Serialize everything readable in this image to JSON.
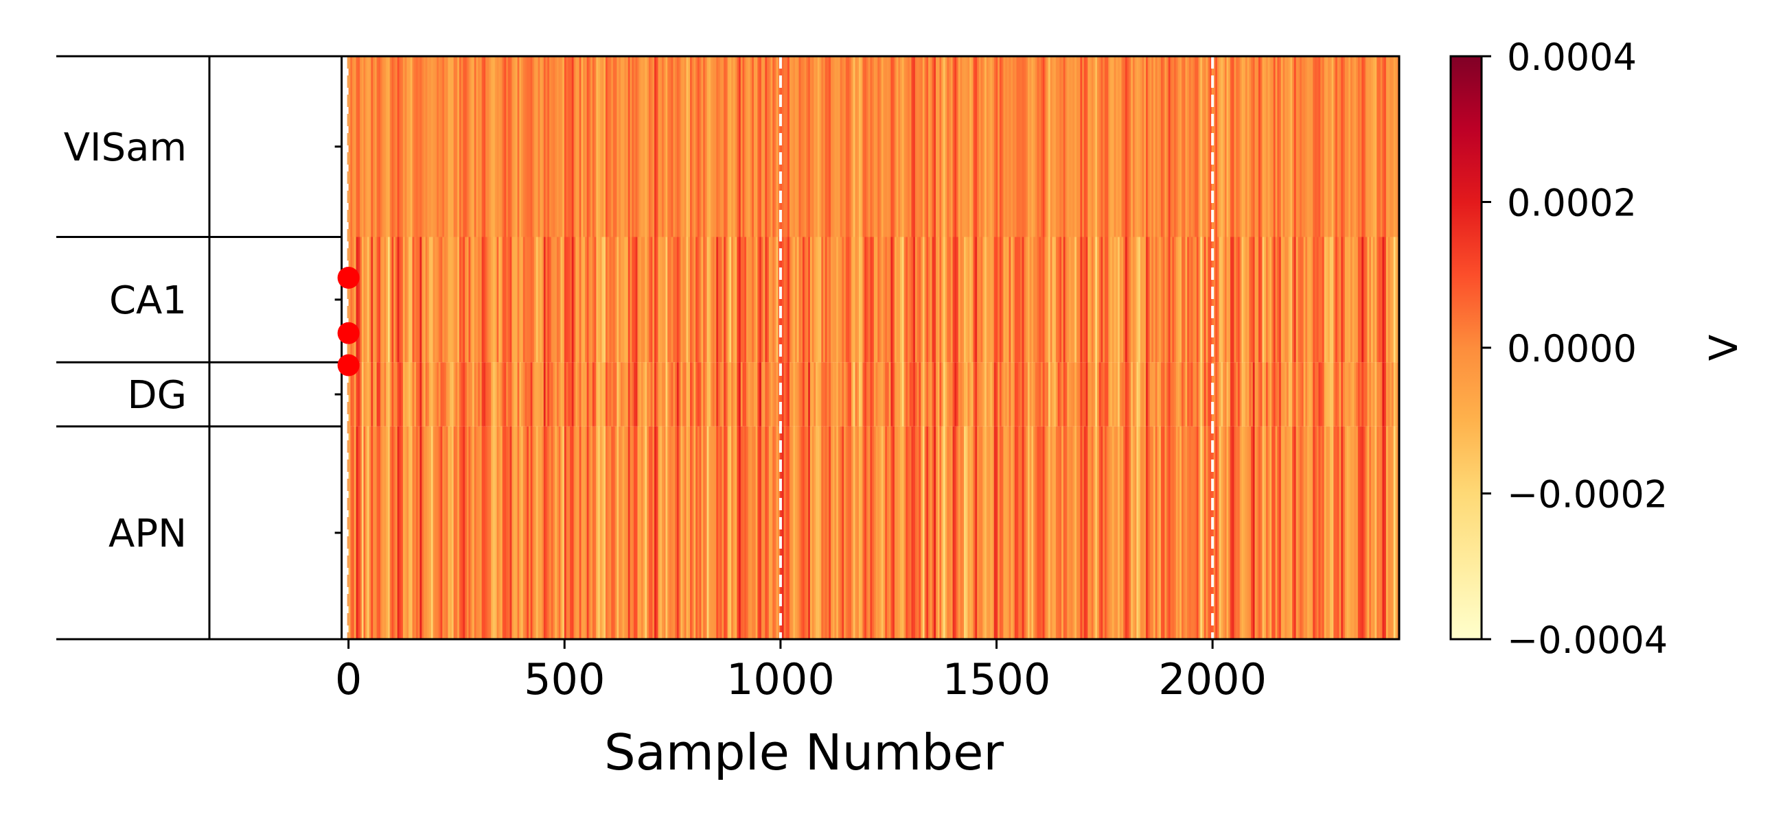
{
  "chart_data": {
    "type": "heatmap",
    "xlabel": "Sample Number",
    "xlim": [
      -322,
      2432
    ],
    "x_ticks": [
      0,
      500,
      1000,
      1500,
      2000
    ],
    "x_tick_labels": [
      "0",
      "500",
      "1000",
      "1500",
      "2000"
    ],
    "regions": [
      {
        "name": "VISam",
        "frac": 0.31
      },
      {
        "name": "CA1",
        "frac": 0.215
      },
      {
        "name": "DG",
        "frac": 0.11
      },
      {
        "name": "APN",
        "frac": 0.365
      }
    ],
    "segment_boundaries": [
      0,
      1000,
      2000
    ],
    "red_markers_region_frac": [
      0.38,
      0.475,
      0.53
    ],
    "colorbar": {
      "label": "V",
      "vmin": -0.0004,
      "vmax": 0.0004,
      "ticks": [
        0.0004,
        0.0002,
        0.0,
        -0.0002,
        -0.0004
      ],
      "tick_labels": [
        "0.0004",
        "0.0002",
        "0.0000",
        "−0.0002",
        "−0.0004"
      ],
      "colormap": "YlOrRd"
    },
    "colors": {
      "marker": "#ff0000",
      "boundary": "#ffffff",
      "first_boundary": "#f8a050"
    }
  }
}
